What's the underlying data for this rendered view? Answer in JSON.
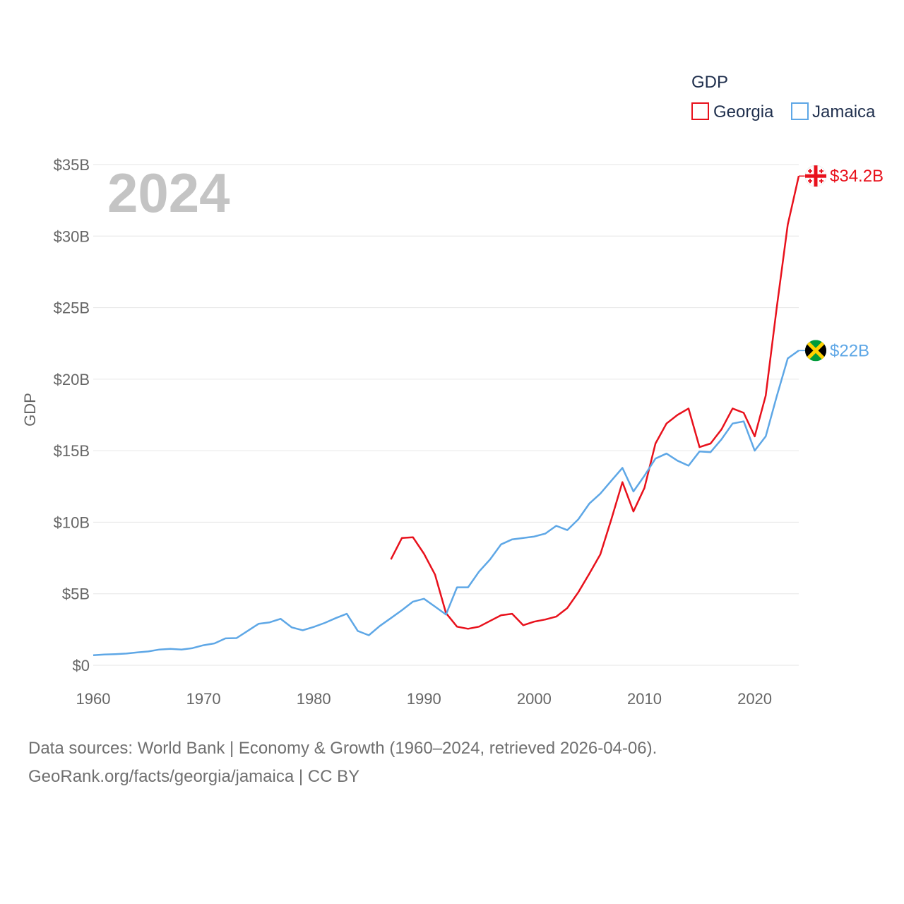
{
  "chart_data": {
    "type": "line",
    "current_year_label": "2024",
    "ylabel": "GDP",
    "legend_title": "GDP",
    "legend_position": "top-right",
    "xlim": [
      1960,
      2024
    ],
    "ylim": [
      0,
      35
    ],
    "unit": "billion USD",
    "x_ticks": [
      {
        "value": 1960,
        "label": "1960"
      },
      {
        "value": 1970,
        "label": "1970"
      },
      {
        "value": 1980,
        "label": "1980"
      },
      {
        "value": 1990,
        "label": "1990"
      },
      {
        "value": 2000,
        "label": "2000"
      },
      {
        "value": 2010,
        "label": "2010"
      },
      {
        "value": 2020,
        "label": "2020"
      }
    ],
    "y_ticks": [
      {
        "value": 0,
        "label": "$0"
      },
      {
        "value": 5,
        "label": "$5B"
      },
      {
        "value": 10,
        "label": "$10B"
      },
      {
        "value": 15,
        "label": "$15B"
      },
      {
        "value": 20,
        "label": "$20B"
      },
      {
        "value": 25,
        "label": "$25B"
      },
      {
        "value": 30,
        "label": "$30B"
      },
      {
        "value": 35,
        "label": "$35B"
      }
    ],
    "series": [
      {
        "name": "Georgia",
        "color": "#e8111c",
        "end_label": "$34.2B",
        "flag_icon": "georgia-flag-icon",
        "x": [
          1987,
          1988,
          1989,
          1990,
          1991,
          1992,
          1993,
          1994,
          1995,
          1996,
          1997,
          1998,
          1999,
          2000,
          2001,
          2002,
          2003,
          2004,
          2005,
          2006,
          2007,
          2008,
          2009,
          2010,
          2011,
          2012,
          2013,
          2014,
          2015,
          2016,
          2017,
          2018,
          2019,
          2020,
          2021,
          2022,
          2023,
          2024
        ],
        "values": [
          7.4,
          8.9,
          8.95,
          7.8,
          6.35,
          3.65,
          2.7,
          2.55,
          2.7,
          3.1,
          3.5,
          3.6,
          2.8,
          3.05,
          3.2,
          3.4,
          4.0,
          5.1,
          6.4,
          7.75,
          10.2,
          12.8,
          10.75,
          12.4,
          15.5,
          16.9,
          17.5,
          17.95,
          15.25,
          15.5,
          16.5,
          17.95,
          17.65,
          16.0,
          18.85,
          25.0,
          30.8,
          34.2
        ]
      },
      {
        "name": "Jamaica",
        "color": "#5ea7e6",
        "end_label": "$22B",
        "flag_icon": "jamaica-flag-icon",
        "x": [
          1960,
          1961,
          1962,
          1963,
          1964,
          1965,
          1966,
          1967,
          1968,
          1969,
          1970,
          1971,
          1972,
          1973,
          1974,
          1975,
          1976,
          1977,
          1978,
          1979,
          1980,
          1981,
          1982,
          1983,
          1984,
          1985,
          1986,
          1987,
          1988,
          1989,
          1990,
          1991,
          1992,
          1993,
          1994,
          1995,
          1996,
          1997,
          1998,
          1999,
          2000,
          2001,
          2002,
          2003,
          2004,
          2005,
          2006,
          2007,
          2008,
          2009,
          2010,
          2011,
          2012,
          2013,
          2014,
          2015,
          2016,
          2017,
          2018,
          2019,
          2020,
          2021,
          2022,
          2023,
          2024
        ],
        "values": [
          0.7,
          0.75,
          0.78,
          0.82,
          0.9,
          0.97,
          1.1,
          1.15,
          1.1,
          1.2,
          1.4,
          1.53,
          1.88,
          1.9,
          2.4,
          2.9,
          3.0,
          3.25,
          2.65,
          2.45,
          2.68,
          2.96,
          3.3,
          3.6,
          2.4,
          2.1,
          2.75,
          3.3,
          3.85,
          4.45,
          4.65,
          4.1,
          3.55,
          5.45,
          5.45,
          6.55,
          7.4,
          8.45,
          8.8,
          8.9,
          9.0,
          9.2,
          9.75,
          9.45,
          10.2,
          11.3,
          12.0,
          12.9,
          13.8,
          12.15,
          13.25,
          14.45,
          14.8,
          14.3,
          13.95,
          14.95,
          14.9,
          15.8,
          16.9,
          17.05,
          15.0,
          16.0,
          18.8,
          21.45,
          22.0
        ]
      }
    ]
  },
  "footer": {
    "line1": "Data sources: World Bank | Economy & Growth (1960–2024, retrieved 2026-04-06).",
    "line2": "GeoRank.org/facts/georgia/jamaica | CC BY"
  }
}
